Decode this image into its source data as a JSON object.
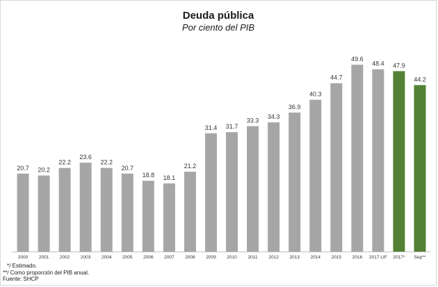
{
  "chart_data": {
    "type": "bar",
    "title": "Deuda pública",
    "subtitle": "Por ciento del PIB",
    "xlabel": "",
    "ylabel": "",
    "ylim": [
      0,
      50
    ],
    "grid": false,
    "legend": "none",
    "categories": [
      "2000",
      "2001",
      "2002",
      "2003",
      "2004",
      "2005",
      "2006",
      "2007",
      "2008",
      "2009",
      "2010",
      "2011",
      "2012",
      "2013",
      "2014",
      "2015",
      "2016",
      "2017 LIF",
      "2017*",
      "Sep**"
    ],
    "values": [
      20.7,
      20.2,
      22.2,
      23.6,
      22.2,
      20.7,
      18.8,
      18.1,
      21.2,
      31.4,
      31.7,
      33.3,
      34.3,
      36.9,
      40.3,
      44.7,
      49.6,
      48.4,
      47.9,
      44.2
    ],
    "value_labels": [
      "20.7",
      "20.2",
      "22.2",
      "23.6",
      "22.2",
      "20.7",
      "18.8",
      "18.1",
      "21.2",
      "31.4",
      "31.7",
      "33.3",
      "34.3",
      "36.9",
      "40.3",
      "44.7",
      "49.6",
      "48.4",
      "47.9",
      "44.2"
    ],
    "colors": {
      "default": "#a6a6a6",
      "highlight": "#538135",
      "axis": "#bfbfbf"
    },
    "highlight_categories": [
      "2017*",
      "Sep**"
    ]
  },
  "notes": [
    "*/ Estimado.",
    "**/ Como proporción del PIB anual.",
    "Fuente: SHCP"
  ]
}
